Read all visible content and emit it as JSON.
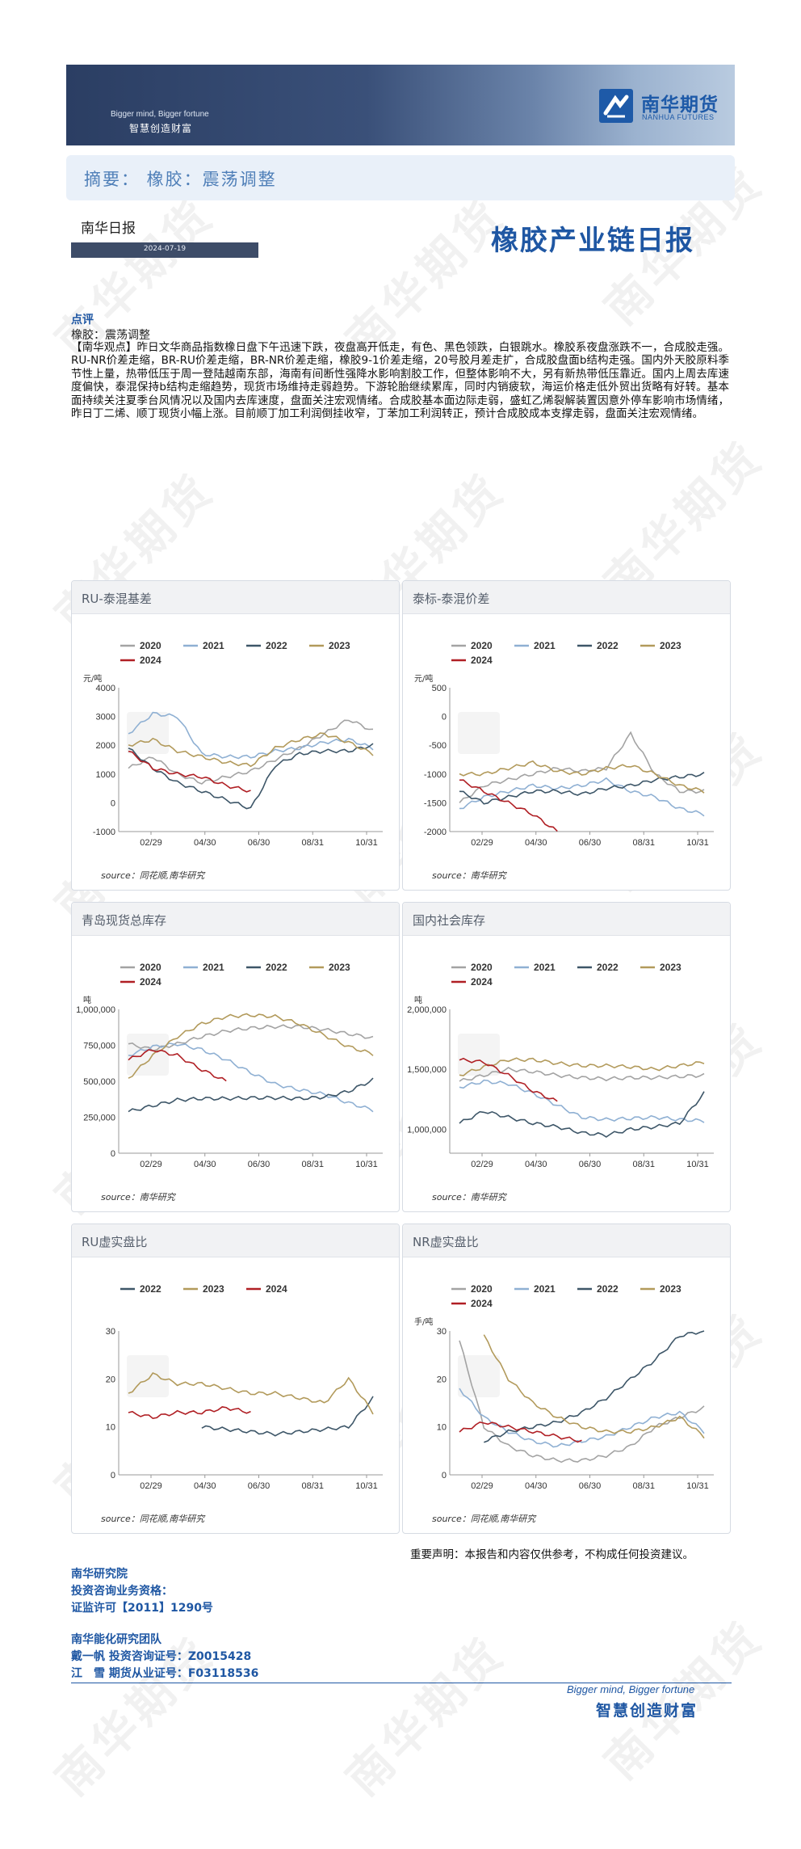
{
  "header": {
    "slogan_en": "Bigger mind, Bigger fortune",
    "slogan_cn": "智慧创造财富",
    "logo_cn": "南华期货",
    "logo_en": "NANHUA FUTURES"
  },
  "summary": {
    "text": "摘要：  橡胶：震荡调整"
  },
  "report": {
    "daily_label": "南华日报",
    "date": "2024-07-19",
    "title": "橡胶产业链日报"
  },
  "comment": {
    "heading": "点评",
    "subheading": "橡胶：震荡调整",
    "body": "【南华观点】昨日文华商品指数橡日盘下午迅速下跌，夜盘高开低走，有色、黑色领跌，白银跳水。橡胶系夜盘涨跌不一，合成胶走强。RU-NR价差走缩，BR-RU价差走缩，BR-NR价差走缩，橡胶9-1价差走缩，20号胶月差走扩，合成胶盘面b结构走强。国内外天胶原料季节性上量，热带低压于周一登陆越南东部，海南有间断性强降水影响割胶工作，但整体影响不大，另有新热带低压靠近。国内上周去库速度偏快，泰混保持b结构走缩趋势，现货市场维持走弱趋势。下游轮胎继续累库，同时内销疲软，海运价格走低外贸出货略有好转。基本面持续关注夏季台风情况以及国内去库速度，盘面关注宏观情绪。合成胶基本面边际走弱，盛虹乙烯裂解装置因意外停车影响市场情绪，昨日丁二烯、顺丁现货小幅上涨。目前顺丁加工利润倒挂收窄，丁苯加工利润转正，预计合成胶成本支撑走弱，盘面关注宏观情绪。"
  },
  "charts": [
    {
      "title": "RU-泰混基差",
      "unit": "元/吨",
      "source": "source：同花顺,南华研究",
      "chart_data": {
        "type": "line",
        "x_ticks": [
          "02/29",
          "04/30",
          "06/30",
          "08/31",
          "10/31"
        ],
        "y_ticks": [
          4000,
          3000,
          2000,
          1000,
          0,
          -1000
        ],
        "ylim": [
          -1000,
          4000
        ],
        "series": [
          {
            "name": "2020",
            "color": "#a3a3a3",
            "values": [
              1200,
              1600,
              1000,
              700,
              900,
              1100,
              1500,
              1900,
              2400,
              2900,
              2500
            ]
          },
          {
            "name": "2021",
            "color": "#8fb0d3",
            "values": [
              2400,
              3100,
              3000,
              1700,
              1600,
              1600,
              1800,
              1900,
              2100,
              2200,
              1900
            ]
          },
          {
            "name": "2022",
            "color": "#3d5668",
            "values": [
              1900,
              1200,
              700,
              400,
              100,
              -200,
              1300,
              1700,
              1800,
              1800,
              2000
            ]
          },
          {
            "name": "2023",
            "color": "#b29a5b",
            "values": [
              2000,
              2200,
              1800,
              1600,
              1400,
              1300,
              1900,
              2200,
              2400,
              2100,
              1700
            ]
          },
          {
            "name": "2024",
            "color": "#b01f24",
            "values": [
              1800,
              1200,
              1000,
              900,
              600,
              400,
              null,
              null,
              null,
              null,
              null
            ]
          }
        ]
      }
    },
    {
      "title": "泰标-泰混价差",
      "unit": "元/吨",
      "source": "source：南华研究",
      "chart_data": {
        "type": "line",
        "x_ticks": [
          "02/29",
          "04/30",
          "06/30",
          "08/31",
          "10/31"
        ],
        "y_ticks": [
          500,
          0,
          -500,
          -1000,
          -1500,
          -2000
        ],
        "ylim": [
          -2000,
          500
        ],
        "series": [
          {
            "name": "2020",
            "color": "#a3a3a3",
            "values": [
              -1500,
              -1200,
              -1100,
              -1000,
              -900,
              -950,
              -900,
              -300,
              -1000,
              -1300,
              -1300
            ]
          },
          {
            "name": "2021",
            "color": "#8fb0d3",
            "values": [
              -1600,
              -1400,
              -1300,
              -1200,
              -1250,
              -1200,
              -1100,
              -1300,
              -1400,
              -1600,
              -1700
            ]
          },
          {
            "name": "2022",
            "color": "#3d5668",
            "values": [
              -1300,
              -1500,
              -1400,
              -1300,
              -1300,
              -1350,
              -1250,
              -1200,
              -1100,
              -1050,
              -1000
            ]
          },
          {
            "name": "2023",
            "color": "#b29a5b",
            "values": [
              -1000,
              -1000,
              -900,
              -800,
              -950,
              -1000,
              -900,
              -850,
              -1000,
              -1200,
              -1300
            ]
          },
          {
            "name": "2024",
            "color": "#b01f24",
            "values": [
              -1100,
              -1300,
              -1500,
              -1700,
              -2000,
              null,
              null,
              null,
              null,
              null,
              null
            ]
          }
        ]
      }
    },
    {
      "title": "青岛现货总库存",
      "unit": "吨",
      "source": "source：南华研究",
      "chart_data": {
        "type": "line",
        "x_ticks": [
          "02/29",
          "04/30",
          "06/30",
          "08/31",
          "10/31"
        ],
        "y_ticks": [
          "1,000,000",
          "750,000",
          "500,000",
          "250,000",
          "0"
        ],
        "ylim": [
          0,
          1000000
        ],
        "series": [
          {
            "name": "2020",
            "color": "#a3a3a3",
            "values": [
              760000,
              720000,
              760000,
              810000,
              850000,
              870000,
              880000,
              880000,
              860000,
              830000,
              800000
            ]
          },
          {
            "name": "2021",
            "color": "#8fb0d3",
            "values": [
              680000,
              740000,
              760000,
              720000,
              650000,
              560000,
              480000,
              440000,
              410000,
              350000,
              300000
            ]
          },
          {
            "name": "2022",
            "color": "#3d5668",
            "values": [
              290000,
              330000,
              370000,
              380000,
              380000,
              385000,
              385000,
              380000,
              390000,
              430000,
              510000
            ]
          },
          {
            "name": "2023",
            "color": "#b29a5b",
            "values": [
              520000,
              680000,
              810000,
              900000,
              950000,
              960000,
              950000,
              900000,
              820000,
              740000,
              690000
            ]
          },
          {
            "name": "2024",
            "color": "#b01f24",
            "values": [
              650000,
              720000,
              680000,
              580000,
              500000,
              null,
              null,
              null,
              null,
              null,
              null
            ]
          }
        ]
      }
    },
    {
      "title": "国内社会库存",
      "unit": "吨",
      "source": "source：南华研究",
      "chart_data": {
        "type": "line",
        "x_ticks": [
          "02/29",
          "04/30",
          "06/30",
          "08/31",
          "10/31"
        ],
        "y_ticks": [
          "2,000,000",
          "1,500,000",
          "1,000,000"
        ],
        "ylim": [
          800000,
          2000000
        ],
        "series": [
          {
            "name": "2020",
            "color": "#a3a3a3",
            "values": [
              1400000,
              1450000,
              1500000,
              1480000,
              1450000,
              1430000,
              1420000,
              1430000,
              1430000,
              1440000,
              1450000
            ]
          },
          {
            "name": "2021",
            "color": "#8fb0d3",
            "values": [
              1350000,
              1400000,
              1380000,
              1300000,
              1200000,
              1100000,
              1080000,
              1090000,
              1100000,
              1080000,
              1070000
            ]
          },
          {
            "name": "2022",
            "color": "#3d5668",
            "values": [
              1050000,
              1150000,
              1100000,
              1050000,
              1020000,
              970000,
              950000,
              1000000,
              1020000,
              1050000,
              1300000
            ]
          },
          {
            "name": "2023",
            "color": "#b29a5b",
            "values": [
              1450000,
              1520000,
              1580000,
              1580000,
              1550000,
              1530000,
              1530000,
              1520000,
              1500000,
              1530000,
              1560000
            ]
          },
          {
            "name": "2024",
            "color": "#b01f24",
            "values": [
              1580000,
              1560000,
              1450000,
              1320000,
              1230000,
              null,
              null,
              null,
              null,
              null,
              null
            ]
          }
        ]
      }
    },
    {
      "title": "RU虚实盘比",
      "unit": "",
      "source": "source：同花顺,南华研究",
      "chart_data": {
        "type": "line",
        "x_ticks": [
          "02/29",
          "04/30",
          "06/30",
          "08/31",
          "10/31"
        ],
        "y_ticks": [
          30,
          20,
          10,
          0
        ],
        "ylim": [
          0,
          30
        ],
        "series": [
          {
            "name": "2022",
            "color": "#3d5668",
            "values": [
              null,
              null,
              null,
              10,
              9.5,
              9,
              8.5,
              9,
              9.5,
              10,
              16
            ]
          },
          {
            "name": "2023",
            "color": "#b29a5b",
            "values": [
              17,
              21,
              19,
              19,
              18,
              17,
              17,
              16,
              15,
              20,
              13
            ]
          },
          {
            "name": "2024",
            "color": "#b01f24",
            "values": [
              13,
              12,
              13,
              13,
              14,
              13,
              null,
              null,
              null,
              null,
              null
            ]
          }
        ]
      }
    },
    {
      "title": "NR虚实盘比",
      "unit": "手/吨",
      "source": "source：同花顺,南华研究",
      "chart_data": {
        "type": "line",
        "x_ticks": [
          "02/29",
          "04/30",
          "06/30",
          "08/31",
          "10/31"
        ],
        "y_ticks": [
          30,
          20,
          10,
          0
        ],
        "ylim": [
          0,
          30
        ],
        "series": [
          {
            "name": "2020",
            "color": "#a3a3a3",
            "values": [
              28,
              10,
              6,
              4,
              3,
              3,
              4,
              6,
              10,
              12,
              14
            ]
          },
          {
            "name": "2021",
            "color": "#8fb0d3",
            "values": [
              18,
              12,
              9,
              7,
              6,
              7,
              8,
              10,
              12,
              13,
              9
            ]
          },
          {
            "name": "2022",
            "color": "#3d5668",
            "values": [
              null,
              7,
              9,
              10,
              11,
              13,
              16,
              20,
              24,
              29,
              30
            ]
          },
          {
            "name": "2023",
            "color": "#b29a5b",
            "values": [
              null,
              29,
              20,
              15,
              12,
              10,
              9,
              9,
              10,
              12,
              8
            ]
          },
          {
            "name": "2024",
            "color": "#b01f24",
            "values": [
              9,
              11,
              10,
              9,
              8,
              7,
              null,
              null,
              null,
              null,
              null
            ]
          }
        ]
      }
    }
  ],
  "disclaimer": "重要声明：本报告和内容仅供参考，不构成任何投资建议。",
  "team": {
    "institute": "南华研究院",
    "qualification": "投资咨询业务资格：",
    "license": "证监许可【2011】1290号",
    "team_name": "南华能化研究团队",
    "analyst1": "戴一帆 投资咨询证号：Z0015428",
    "analyst2": "江　雪 期货从业证号：F03118536"
  },
  "footer": {
    "slogan_en": "Bigger mind, Bigger fortune",
    "slogan_cn": "智慧创造财富"
  },
  "watermark": "南华期货"
}
